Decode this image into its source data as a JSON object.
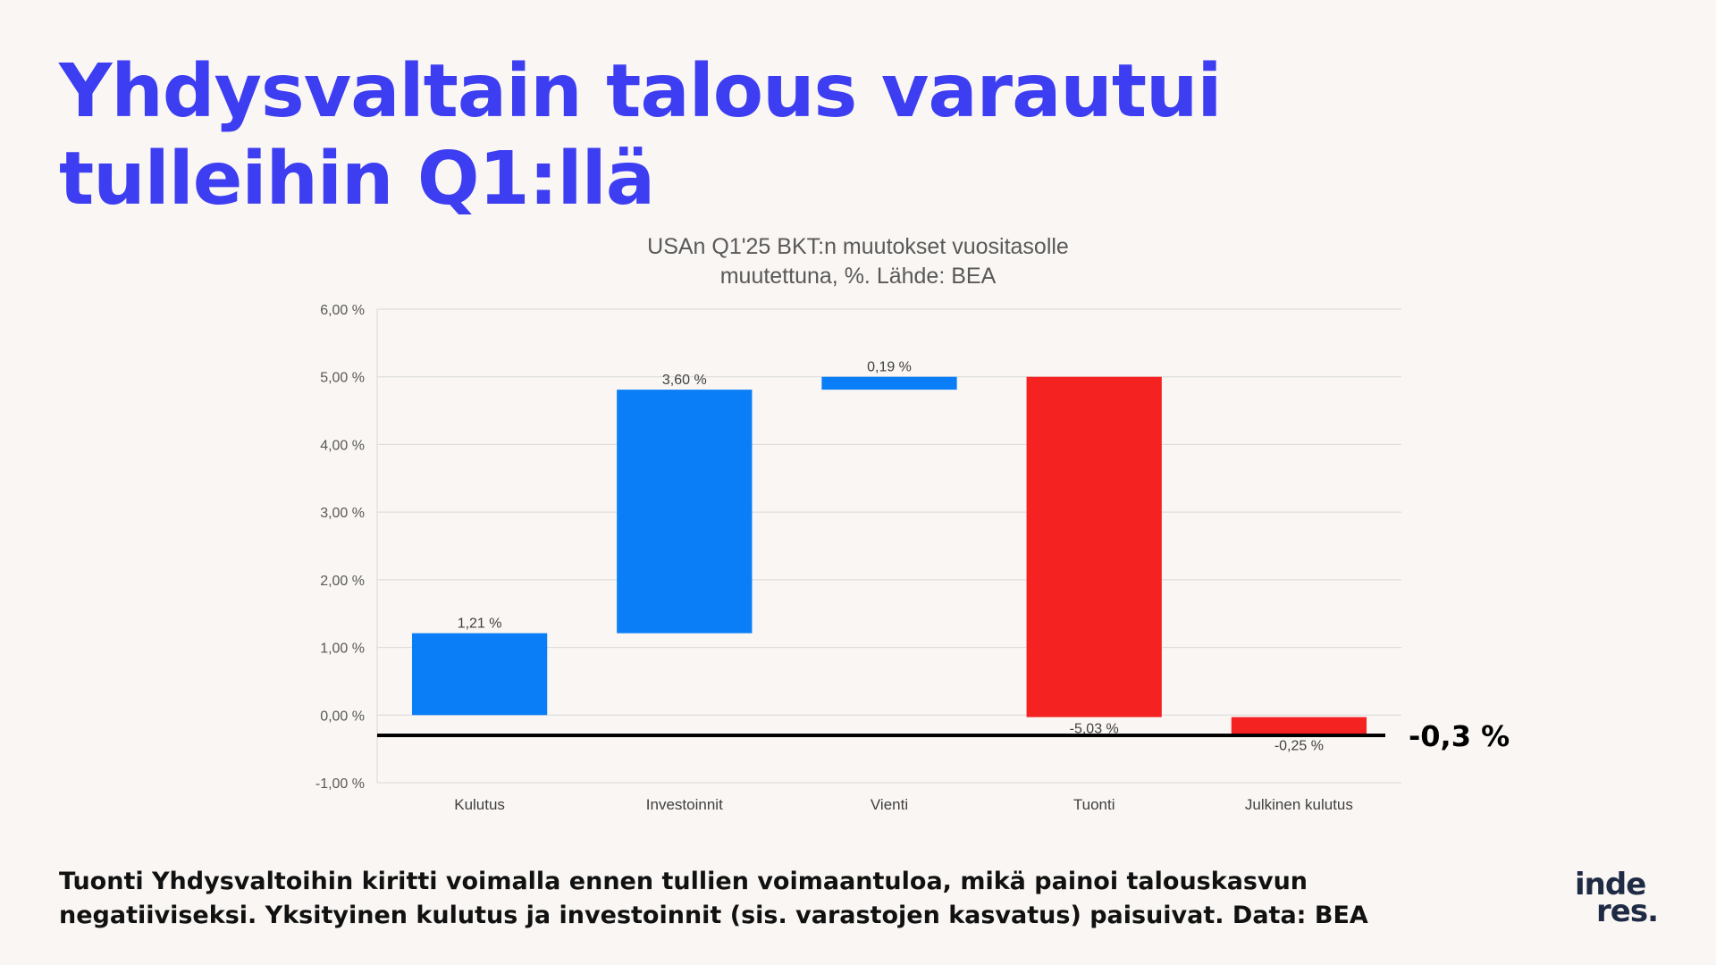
{
  "headline": {
    "line1": "Yhdysvaltain talous varautui",
    "line2": "tulleihin Q1:llä"
  },
  "footer": {
    "line1": "Tuonti Yhdysvaltoihin kiritti voimalla ennen tullien voimaantuloa, mikä painoi talouskasvun",
    "line2": "negatiiviseksi. Yksityinen kulutus ja investoinnit (sis. varastojen kasvatus) paisuivat. Data: BEA"
  },
  "logo": {
    "line1": "inde",
    "line2": "res."
  },
  "colors": {
    "headline": "#3d3df2",
    "positive": "#0a7ef7",
    "negative": "#f52222",
    "total_line": "#000000",
    "background": "#f9f6f3"
  },
  "chart_data": {
    "type": "bar",
    "subtype": "waterfall",
    "title_line1": "USAn Q1'25 BKT:n muutokset vuositasolle",
    "title_line2": "muutettuna, %. Lähde: BEA",
    "categories": [
      "Kulutus",
      "Investoinnit",
      "Vienti",
      "Tuonti",
      "Julkinen kulutus"
    ],
    "values": [
      1.21,
      3.6,
      0.19,
      -5.03,
      -0.25
    ],
    "value_labels": [
      "1,21 %",
      "3,60 %",
      "0,19 %",
      "-5,03 %",
      "-0,25 %"
    ],
    "ylim": [
      -1,
      6
    ],
    "yticks": [
      6,
      5,
      4,
      3,
      2,
      1,
      0,
      -1
    ],
    "ytick_labels": [
      "6,00 %",
      "5,00 %",
      "4,00 %",
      "3,00 %",
      "2,00 %",
      "1,00 %",
      "0,00 %",
      "-1,00 %"
    ],
    "total_value": -0.3,
    "total_label": "-0,3 %",
    "grid": true,
    "legend": "none"
  }
}
